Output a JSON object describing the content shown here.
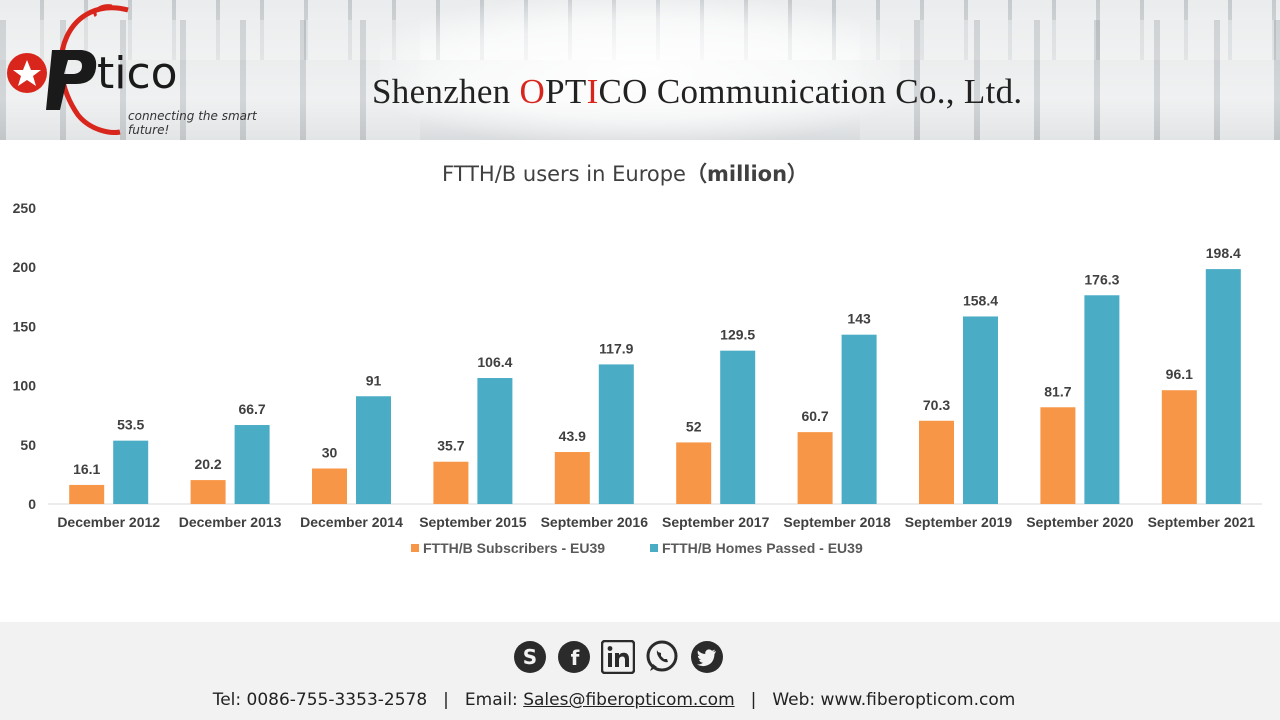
{
  "header": {
    "logo_text": "OPtico",
    "tagline": "connecting the smart future!",
    "company_prefix": "Shenzhen ",
    "company_brand_red1": "O",
    "company_brand_mid1": "PT",
    "company_brand_red2": "I",
    "company_brand_mid2": "CO",
    "company_suffix": " Communication Co., Ltd."
  },
  "chart_data": {
    "type": "bar",
    "title": "FTTH/B users in Europe",
    "title_unit": "（million）",
    "categories": [
      "December 2012",
      "December 2013",
      "December 2014",
      "September 2015",
      "September 2016",
      "September 2017",
      "September 2018",
      "September 2019",
      "September 2020",
      "September 2021"
    ],
    "series": [
      {
        "name": "FTTH/B Subscribers - EU39",
        "color": "#F79646",
        "values": [
          16.1,
          20.2,
          30,
          35.7,
          43.9,
          52,
          60.7,
          70.3,
          81.7,
          96.1
        ]
      },
      {
        "name": "FTTH/B Homes Passed - EU39",
        "color": "#4BACC6",
        "values": [
          53.5,
          66.7,
          91,
          106.4,
          117.9,
          129.5,
          143,
          158.4,
          176.3,
          198.4
        ]
      }
    ],
    "yticks": [
      0,
      50,
      100,
      150,
      200,
      250
    ],
    "ylim": [
      0,
      250
    ],
    "grid": false,
    "legend_position": "bottom",
    "xlabel": "",
    "ylabel": ""
  },
  "footer": {
    "social_icons": [
      "skype-icon",
      "facebook-icon",
      "linkedin-icon",
      "whatsapp-icon",
      "twitter-icon"
    ],
    "tel": "Tel: 0086-755-3353-2578",
    "separator": "|",
    "email_label": "Email:",
    "email": "Sales@fiberopticom.com",
    "web": "Web: www.fiberopticom.com"
  }
}
